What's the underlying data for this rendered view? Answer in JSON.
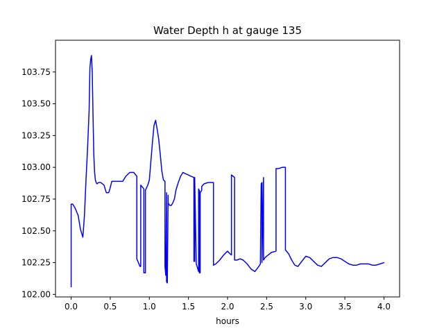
{
  "chart_data": {
    "type": "line",
    "title": "Water Depth h at gauge 135",
    "xlabel": "hours",
    "ylabel": "",
    "xlim": [
      -0.2,
      4.2
    ],
    "ylim": [
      101.98,
      104.0
    ],
    "xticks": [
      0.0,
      0.5,
      1.0,
      1.5,
      2.0,
      2.5,
      3.0,
      3.5,
      4.0
    ],
    "xtick_labels": [
      "0.0",
      "0.5",
      "1.0",
      "1.5",
      "2.0",
      "2.5",
      "3.0",
      "3.5",
      "4.0"
    ],
    "yticks": [
      102.0,
      102.25,
      102.5,
      102.75,
      103.0,
      103.25,
      103.5,
      103.75
    ],
    "ytick_labels": [
      "102.00",
      "102.25",
      "102.50",
      "102.75",
      "103.00",
      "103.25",
      "103.50",
      "103.75"
    ],
    "grid": false,
    "series": [
      {
        "color": "#0000ff",
        "x": [
          0.0,
          0.0,
          0.02,
          0.05,
          0.09,
          0.12,
          0.15,
          0.17,
          0.19,
          0.21,
          0.23,
          0.24,
          0.25,
          0.26,
          0.27,
          0.28,
          0.29,
          0.3,
          0.31,
          0.32,
          0.33,
          0.35,
          0.38,
          0.42,
          0.45,
          0.48,
          0.5,
          0.52,
          0.55,
          0.6,
          0.66,
          0.7,
          0.75,
          0.8,
          0.84,
          0.84,
          0.88,
          0.89,
          0.89,
          0.93,
          0.93,
          0.94,
          0.95,
          0.95,
          0.98,
          1.0,
          1.02,
          1.04,
          1.06,
          1.08,
          1.1,
          1.12,
          1.14,
          1.16,
          1.18,
          1.2,
          1.2,
          1.21,
          1.22,
          1.22,
          1.23,
          1.24,
          1.24,
          1.26,
          1.28,
          1.3,
          1.32,
          1.34,
          1.37,
          1.4,
          1.43,
          1.46,
          1.5,
          1.53,
          1.57,
          1.57,
          1.58,
          1.58,
          1.6,
          1.62,
          1.63,
          1.63,
          1.64,
          1.64,
          1.65,
          1.65,
          1.67,
          1.67,
          1.7,
          1.75,
          1.79,
          1.82,
          1.82,
          1.85,
          1.9,
          1.95,
          2.0,
          2.03,
          2.05,
          2.05,
          2.07,
          2.09,
          2.09,
          2.12,
          2.16,
          2.2,
          2.25,
          2.3,
          2.35,
          2.4,
          2.42,
          2.43,
          2.44,
          2.44,
          2.46,
          2.46,
          2.48,
          2.52,
          2.56,
          2.62,
          2.62,
          2.65,
          2.7,
          2.74,
          2.74,
          2.78,
          2.82,
          2.86,
          2.9,
          2.95,
          3.0,
          3.05,
          3.1,
          3.15,
          3.2,
          3.25,
          3.3,
          3.35,
          3.4,
          3.45,
          3.5,
          3.55,
          3.6,
          3.65,
          3.7,
          3.75,
          3.8,
          3.85,
          3.9,
          3.95,
          4.0
        ],
        "y": [
          102.06,
          102.71,
          102.71,
          102.68,
          102.62,
          102.51,
          102.45,
          102.62,
          102.9,
          103.15,
          103.45,
          103.78,
          103.85,
          103.88,
          103.75,
          103.4,
          103.1,
          102.96,
          102.9,
          102.88,
          102.87,
          102.88,
          102.88,
          102.86,
          102.8,
          102.8,
          102.84,
          102.89,
          102.89,
          102.89,
          102.89,
          102.93,
          102.96,
          102.96,
          102.93,
          102.28,
          102.22,
          102.22,
          102.86,
          102.83,
          102.17,
          102.17,
          102.17,
          102.82,
          102.86,
          102.9,
          103.05,
          103.2,
          103.33,
          103.37,
          103.3,
          103.22,
          103.1,
          102.97,
          102.9,
          102.89,
          102.22,
          102.15,
          102.8,
          102.1,
          102.09,
          102.78,
          102.72,
          102.7,
          102.7,
          102.72,
          102.75,
          102.82,
          102.88,
          102.93,
          102.96,
          102.95,
          102.94,
          102.93,
          102.92,
          102.26,
          102.26,
          102.92,
          102.24,
          102.2,
          102.18,
          102.83,
          102.17,
          102.82,
          102.17,
          102.8,
          102.82,
          102.85,
          102.87,
          102.88,
          102.88,
          102.88,
          102.23,
          102.24,
          102.27,
          102.31,
          102.34,
          102.32,
          102.31,
          102.94,
          102.93,
          102.92,
          102.27,
          102.27,
          102.28,
          102.27,
          102.24,
          102.2,
          102.18,
          102.22,
          102.24,
          102.87,
          102.88,
          102.25,
          102.92,
          102.27,
          102.29,
          102.31,
          102.33,
          102.34,
          102.99,
          102.99,
          103.0,
          103.0,
          102.35,
          102.32,
          102.27,
          102.23,
          102.22,
          102.26,
          102.3,
          102.29,
          102.26,
          102.23,
          102.22,
          102.25,
          102.28,
          102.29,
          102.29,
          102.28,
          102.26,
          102.24,
          102.23,
          102.23,
          102.24,
          102.24,
          102.24,
          102.23,
          102.23,
          102.24,
          102.25
        ]
      }
    ]
  }
}
